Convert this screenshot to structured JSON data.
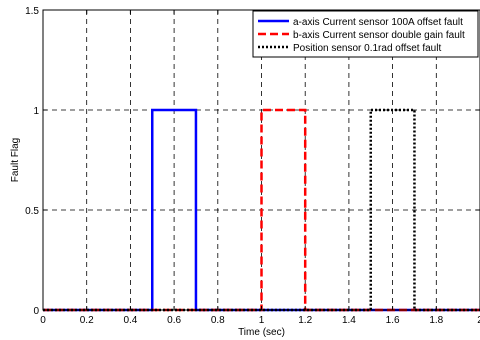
{
  "chart_data": {
    "type": "line",
    "xlabel": "Time (sec)",
    "ylabel": "Fault Flag",
    "xlim": [
      0,
      2
    ],
    "ylim": [
      0,
      1.5
    ],
    "xticks": [
      0,
      0.2,
      0.4,
      0.6,
      0.8,
      1,
      1.2,
      1.4,
      1.6,
      1.8,
      2
    ],
    "xtick_labels": [
      "0",
      "0.2",
      "0.4",
      "0.6",
      "0.8",
      "1",
      "1.2",
      "1.4",
      "1.6",
      "1.8",
      "2"
    ],
    "yticks": [
      0,
      0.5,
      1,
      1.5
    ],
    "ytick_labels": [
      "0",
      "0.5",
      "1",
      "1.5"
    ],
    "grid": true,
    "grid_style": "dashed",
    "legend_position": "top-right",
    "series": [
      {
        "name": "a-axis Current sensor 100A offset fault",
        "color": "#0000ff",
        "style": "solid",
        "x": [
          0,
          0.5,
          0.5,
          0.7,
          0.7,
          2
        ],
        "y": [
          0,
          0,
          1,
          1,
          0,
          0
        ]
      },
      {
        "name": "b-axis Current sensor double gain fault",
        "color": "#ff0000",
        "style": "dashed",
        "x": [
          0,
          1.0,
          1.0,
          1.2,
          1.2,
          2
        ],
        "y": [
          0,
          0,
          1,
          1,
          0,
          0
        ]
      },
      {
        "name": "Position sensor 0.1rad offset fault",
        "color": "#000000",
        "style": "dotted",
        "x": [
          0,
          1.5,
          1.5,
          1.7,
          1.7,
          2
        ],
        "y": [
          0,
          0,
          1,
          1,
          0,
          0
        ]
      }
    ]
  }
}
